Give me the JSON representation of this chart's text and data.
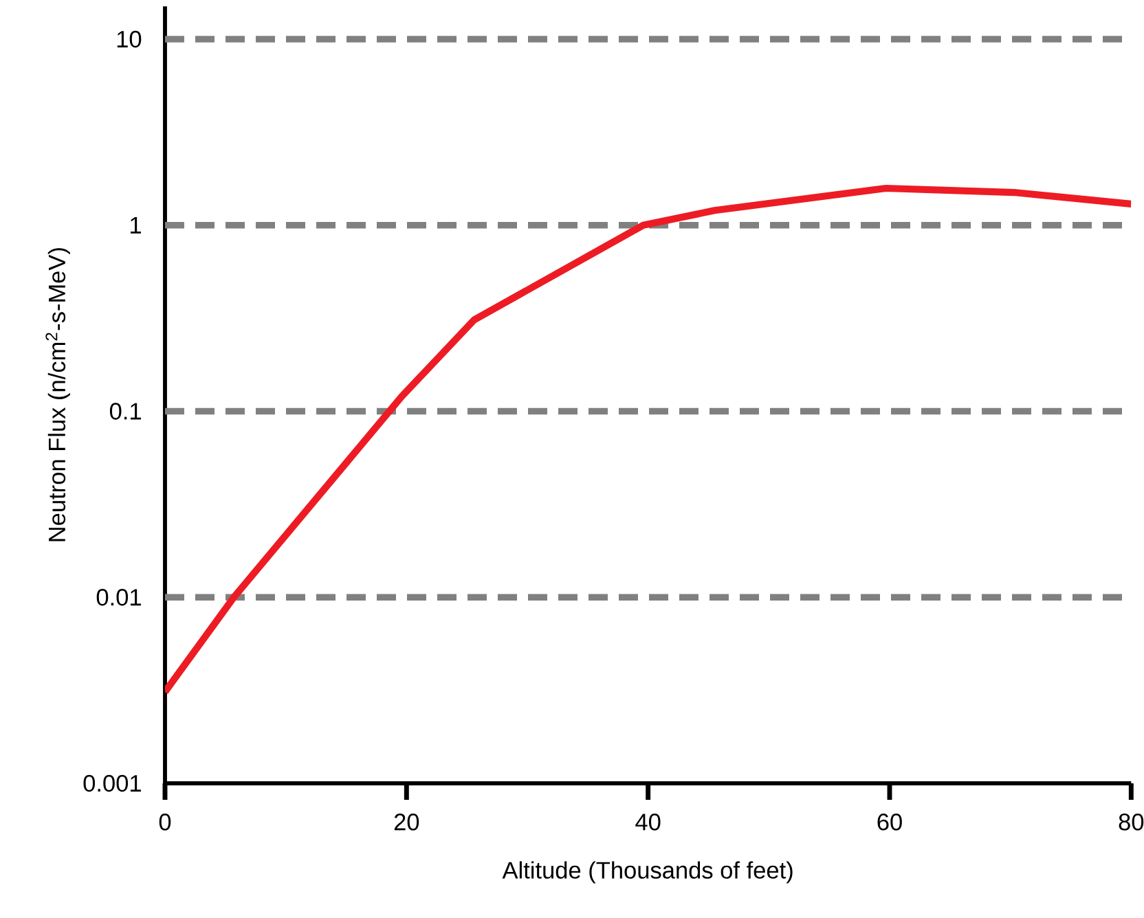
{
  "chart_data": {
    "type": "line",
    "xlabel": "Altitude (Thousands of feet)",
    "ylabel": "Neutron Flux (n/cm$^{2}$-s-MeV)",
    "x": [
      0,
      5.7,
      19.6,
      25.6,
      39.6,
      45.5,
      59.7,
      70.3,
      80
    ],
    "series": [
      {
        "color": "#ed1c24",
        "values": [
          0.0031,
          0.01,
          0.12,
          0.31,
          1.0,
          1.2,
          1.58,
          1.5,
          1.3
        ]
      }
    ],
    "xlim": [
      0,
      80
    ],
    "ylim": [
      0.001,
      15
    ],
    "xticks": [
      0,
      20,
      40,
      60,
      80
    ],
    "yticks": [
      0.001,
      0.01,
      0.1,
      1,
      10
    ],
    "log": "y",
    "ref_lines": [
      {
        "axis": "y",
        "value": 0.01,
        "color": "#808080",
        "line_style": "dashed"
      },
      {
        "axis": "y",
        "value": 0.1,
        "color": "#808080",
        "line_style": "dashed"
      },
      {
        "axis": "y",
        "value": 1,
        "color": "#808080",
        "line_style": "dashed"
      },
      {
        "axis": "y",
        "value": 10,
        "color": "#808080",
        "line_style": "dashed"
      }
    ]
  }
}
